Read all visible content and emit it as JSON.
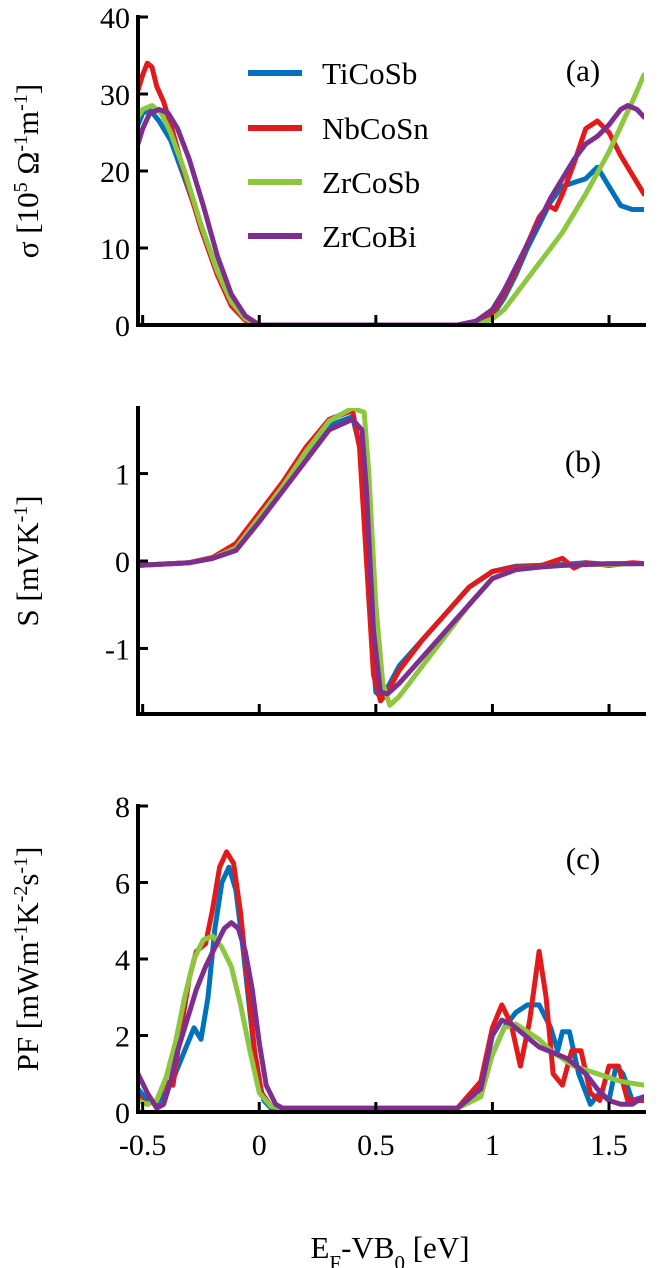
{
  "colors": {
    "TiCoSb": "#0072BD",
    "NbCoSn": "#E31A1C",
    "ZrCoSb": "#8DC63F",
    "ZrCoBi": "#7E2F8E"
  },
  "xlabel": {
    "main": "E",
    "sub1": "F",
    "mid": "-VB",
    "sub2": "0",
    "unit": " [eV]"
  },
  "chart_data": [
    {
      "type": "line",
      "panel": "(a)",
      "ylabel": {
        "base": "σ [10",
        "sup1": "5",
        "mid": " Ω",
        "sup2": "-1",
        "m": "m",
        "sup3": "-1",
        "end": "]"
      },
      "xlim": [
        -0.52,
        1.65
      ],
      "ylim": [
        0,
        40
      ],
      "xticks": [
        -0.5,
        0,
        0.5,
        1,
        1.5
      ],
      "yticks": [
        0,
        10,
        20,
        30,
        40
      ],
      "ytick_labels": [
        "0",
        "10",
        "20",
        "30",
        "40"
      ],
      "legend": {
        "placement": "top-center",
        "entries": [
          "TiCoSb",
          "NbCoSn",
          "ZrCoSb",
          "ZrCoBi"
        ]
      },
      "series": [
        {
          "name": "TiCoSb",
          "x": [
            -0.52,
            -0.5,
            -0.47,
            -0.43,
            -0.38,
            -0.32,
            -0.25,
            -0.18,
            -0.12,
            -0.06,
            0,
            0.1,
            0.3,
            0.5,
            0.7,
            0.85,
            0.95,
            1.0,
            1.05,
            1.1,
            1.15,
            1.2,
            1.25,
            1.3,
            1.35,
            1.4,
            1.45,
            1.5,
            1.55,
            1.6,
            1.65
          ],
          "y": [
            26,
            27.5,
            28,
            26.5,
            24,
            19,
            13,
            7,
            3,
            0.8,
            0,
            0,
            0,
            0,
            0,
            0,
            0.3,
            1.2,
            3.5,
            6.5,
            10,
            13,
            16,
            18,
            18.5,
            19,
            20.5,
            18,
            15.5,
            15,
            15
          ]
        },
        {
          "name": "NbCoSn",
          "x": [
            -0.52,
            -0.5,
            -0.48,
            -0.46,
            -0.44,
            -0.41,
            -0.37,
            -0.32,
            -0.25,
            -0.18,
            -0.12,
            -0.06,
            0,
            0.1,
            0.3,
            0.5,
            0.7,
            0.85,
            0.95,
            1.0,
            1.05,
            1.1,
            1.15,
            1.2,
            1.24,
            1.27,
            1.3,
            1.35,
            1.4,
            1.45,
            1.5,
            1.55,
            1.6,
            1.65
          ],
          "y": [
            30.5,
            32.5,
            34,
            33.5,
            31,
            29,
            25,
            19.5,
            12.5,
            6.5,
            2.5,
            0.6,
            0,
            0,
            0,
            0,
            0,
            0,
            0.4,
            1.5,
            4,
            7,
            10.5,
            14,
            15.5,
            15,
            17,
            21,
            25.5,
            26.5,
            25,
            22,
            19.5,
            17
          ]
        },
        {
          "name": "ZrCoSb",
          "x": [
            -0.52,
            -0.5,
            -0.46,
            -0.42,
            -0.38,
            -0.32,
            -0.25,
            -0.18,
            -0.12,
            -0.06,
            0,
            0.1,
            0.3,
            0.5,
            0.7,
            0.85,
            0.95,
            1.0,
            1.05,
            1.1,
            1.15,
            1.2,
            1.3,
            1.4,
            1.5,
            1.6,
            1.65
          ],
          "y": [
            27,
            28,
            28.5,
            27.5,
            25,
            20,
            13,
            7,
            3,
            0.8,
            0,
            0,
            0,
            0,
            0,
            0,
            0.2,
            0.8,
            2,
            4,
            6,
            8,
            12,
            17,
            22.5,
            29,
            32.5
          ]
        },
        {
          "name": "ZrCoBi",
          "x": [
            -0.52,
            -0.5,
            -0.47,
            -0.43,
            -0.39,
            -0.35,
            -0.3,
            -0.24,
            -0.18,
            -0.12,
            -0.06,
            0,
            0.1,
            0.3,
            0.5,
            0.7,
            0.85,
            0.93,
            1.0,
            1.05,
            1.1,
            1.15,
            1.2,
            1.25,
            1.3,
            1.35,
            1.4,
            1.45,
            1.5,
            1.55,
            1.58,
            1.62,
            1.65
          ],
          "y": [
            23.5,
            25.5,
            27.5,
            28,
            27.5,
            25.5,
            21.5,
            15.5,
            9,
            4,
            1.2,
            0,
            0,
            0,
            0,
            0,
            0,
            0.5,
            2,
            4.5,
            7.5,
            10.5,
            13.5,
            16.5,
            19,
            21.5,
            23.5,
            24.5,
            26,
            28,
            28.5,
            28,
            27
          ]
        }
      ]
    },
    {
      "type": "line",
      "panel": "(b)",
      "ylabel": {
        "base": "S [mVK",
        "sup1": "-1",
        "end": "]"
      },
      "xlim": [
        -0.52,
        1.65
      ],
      "ylim": [
        -1.75,
        1.75
      ],
      "xticks": [
        -0.5,
        0,
        0.5,
        1,
        1.5
      ],
      "yticks": [
        -1,
        0,
        1
      ],
      "ytick_labels": [
        "-1",
        "0",
        "1"
      ],
      "series": [
        {
          "name": "TiCoSb",
          "x": [
            -0.52,
            -0.3,
            -0.2,
            -0.1,
            0,
            0.1,
            0.2,
            0.3,
            0.4,
            0.44,
            0.46,
            0.48,
            0.5,
            0.52,
            0.55,
            0.6,
            0.7,
            0.8,
            0.9,
            1.0,
            1.1,
            1.2,
            1.3,
            1.4,
            1.5,
            1.6,
            1.65
          ],
          "y": [
            -0.05,
            -0.02,
            0.03,
            0.15,
            0.5,
            0.85,
            1.2,
            1.55,
            1.65,
            1.2,
            0.2,
            -0.8,
            -1.5,
            -1.55,
            -1.45,
            -1.2,
            -0.9,
            -0.6,
            -0.3,
            -0.12,
            -0.06,
            -0.05,
            -0.04,
            -0.02,
            -0.04,
            -0.03,
            -0.03
          ]
        },
        {
          "name": "NbCoSn",
          "x": [
            -0.52,
            -0.3,
            -0.2,
            -0.1,
            0,
            0.1,
            0.2,
            0.3,
            0.4,
            0.43,
            0.46,
            0.49,
            0.52,
            0.55,
            0.6,
            0.7,
            0.8,
            0.9,
            1.0,
            1.1,
            1.2,
            1.3,
            1.35,
            1.4,
            1.5,
            1.6,
            1.65
          ],
          "y": [
            -0.05,
            -0.02,
            0.04,
            0.2,
            0.55,
            0.9,
            1.3,
            1.62,
            1.72,
            1.3,
            0,
            -1.3,
            -1.6,
            -1.5,
            -1.25,
            -0.9,
            -0.6,
            -0.3,
            -0.12,
            -0.07,
            -0.06,
            0.03,
            -0.08,
            -0.02,
            -0.05,
            -0.02,
            -0.03
          ]
        },
        {
          "name": "ZrCoSb",
          "x": [
            -0.52,
            -0.3,
            -0.2,
            -0.1,
            0,
            0.1,
            0.2,
            0.3,
            0.4,
            0.45,
            0.47,
            0.5,
            0.53,
            0.56,
            0.6,
            0.7,
            0.8,
            0.9,
            1.0,
            1.1,
            1.2,
            1.3,
            1.4,
            1.5,
            1.6,
            1.65
          ],
          "y": [
            -0.05,
            -0.02,
            0.03,
            0.15,
            0.5,
            0.85,
            1.25,
            1.6,
            1.75,
            1.7,
            1.0,
            -0.5,
            -1.4,
            -1.65,
            -1.55,
            -1.2,
            -0.85,
            -0.5,
            -0.2,
            -0.1,
            -0.07,
            -0.05,
            -0.04,
            -0.04,
            -0.03,
            -0.03
          ]
        },
        {
          "name": "ZrCoBi",
          "x": [
            -0.52,
            -0.3,
            -0.2,
            -0.1,
            0,
            0.1,
            0.2,
            0.3,
            0.4,
            0.44,
            0.46,
            0.49,
            0.52,
            0.55,
            0.6,
            0.7,
            0.8,
            0.9,
            1.0,
            1.1,
            1.2,
            1.3,
            1.4,
            1.5,
            1.6,
            1.65
          ],
          "y": [
            -0.05,
            -0.02,
            0.03,
            0.12,
            0.45,
            0.8,
            1.15,
            1.5,
            1.62,
            1.5,
            0.8,
            -0.8,
            -1.5,
            -1.52,
            -1.4,
            -1.1,
            -0.8,
            -0.5,
            -0.2,
            -0.1,
            -0.07,
            -0.05,
            -0.04,
            -0.03,
            -0.03,
            -0.03
          ]
        }
      ]
    },
    {
      "type": "line",
      "panel": "(c)",
      "ylabel": {
        "base": "PF [mWm",
        "sup1": "-1",
        "mid": "K",
        "sup2": "-2",
        "s": "s",
        "sup3": "-1",
        "end": "]"
      },
      "xlim": [
        -0.52,
        1.65
      ],
      "ylim": [
        0,
        8
      ],
      "xticks": [
        -0.5,
        0,
        0.5,
        1,
        1.5
      ],
      "xtick_labels": [
        "-0.5",
        "0",
        "0.5",
        "1",
        "1.5"
      ],
      "yticks": [
        0,
        2,
        4,
        6,
        8
      ],
      "ytick_labels": [
        "0",
        "2",
        "4",
        "6",
        "8"
      ],
      "series": [
        {
          "name": "TiCoSb",
          "x": [
            -0.52,
            -0.48,
            -0.44,
            -0.4,
            -0.36,
            -0.32,
            -0.28,
            -0.25,
            -0.22,
            -0.19,
            -0.16,
            -0.13,
            -0.1,
            -0.07,
            -0.04,
            -0.01,
            0.02,
            0.05,
            0.1,
            0.3,
            0.5,
            0.7,
            0.85,
            0.95,
            1.0,
            1.05,
            1.1,
            1.15,
            1.2,
            1.25,
            1.28,
            1.3,
            1.33,
            1.37,
            1.42,
            1.46,
            1.5,
            1.53,
            1.56,
            1.6,
            1.65
          ],
          "y": [
            0.6,
            0.3,
            0.2,
            0.5,
            1.0,
            1.6,
            2.2,
            1.9,
            3.0,
            4.8,
            6.0,
            6.4,
            5.8,
            4.3,
            2.6,
            1.0,
            0.3,
            0.1,
            0.1,
            0.1,
            0.1,
            0.1,
            0.1,
            0.6,
            1.5,
            2.2,
            2.6,
            2.8,
            2.8,
            2.2,
            1.6,
            2.1,
            2.1,
            1.0,
            0.2,
            0.5,
            0.3,
            1.2,
            1.0,
            0.3,
            0.4
          ]
        },
        {
          "name": "NbCoSn",
          "x": [
            -0.52,
            -0.48,
            -0.44,
            -0.4,
            -0.37,
            -0.34,
            -0.3,
            -0.27,
            -0.23,
            -0.2,
            -0.17,
            -0.14,
            -0.11,
            -0.08,
            -0.05,
            -0.02,
            0.01,
            0.05,
            0.1,
            0.3,
            0.5,
            0.7,
            0.85,
            0.95,
            1.0,
            1.04,
            1.08,
            1.12,
            1.16,
            1.2,
            1.23,
            1.26,
            1.3,
            1.34,
            1.38,
            1.42,
            1.46,
            1.5,
            1.54,
            1.58,
            1.62,
            1.65
          ],
          "y": [
            0.4,
            0.2,
            0.3,
            0.8,
            0.7,
            2.0,
            3.5,
            4.2,
            4.4,
            5.3,
            6.4,
            6.8,
            6.5,
            5.2,
            3.4,
            1.6,
            0.5,
            0.15,
            0.1,
            0.1,
            0.1,
            0.1,
            0.1,
            0.8,
            2.2,
            2.8,
            2.3,
            1.2,
            2.4,
            4.2,
            3.0,
            1.0,
            0.7,
            1.6,
            1.6,
            0.5,
            0.3,
            1.2,
            1.2,
            0.3,
            0.3,
            0.3
          ]
        },
        {
          "name": "ZrCoSb",
          "x": [
            -0.52,
            -0.48,
            -0.44,
            -0.4,
            -0.36,
            -0.32,
            -0.28,
            -0.24,
            -0.2,
            -0.16,
            -0.12,
            -0.08,
            -0.04,
            0,
            0.05,
            0.1,
            0.3,
            0.5,
            0.7,
            0.85,
            0.95,
            1.0,
            1.05,
            1.1,
            1.15,
            1.2,
            1.25,
            1.3,
            1.35,
            1.4,
            1.45,
            1.5,
            1.55,
            1.6,
            1.65
          ],
          "y": [
            0.3,
            0.2,
            0.3,
            0.9,
            1.8,
            3.0,
            4.0,
            4.5,
            4.6,
            4.3,
            3.8,
            2.8,
            1.6,
            0.5,
            0.15,
            0.1,
            0.1,
            0.1,
            0.1,
            0.1,
            0.4,
            1.5,
            2.2,
            2.3,
            2.1,
            1.9,
            1.6,
            1.4,
            1.2,
            1.1,
            1.0,
            0.9,
            0.8,
            0.75,
            0.7
          ]
        },
        {
          "name": "ZrCoBi",
          "x": [
            -0.52,
            -0.48,
            -0.44,
            -0.41,
            -0.38,
            -0.35,
            -0.31,
            -0.27,
            -0.23,
            -0.19,
            -0.15,
            -0.12,
            -0.09,
            -0.06,
            -0.03,
            0,
            0.03,
            0.07,
            0.1,
            0.3,
            0.5,
            0.7,
            0.85,
            0.95,
            1.0,
            1.04,
            1.08,
            1.12,
            1.16,
            1.2,
            1.24,
            1.28,
            1.32,
            1.36,
            1.4,
            1.45,
            1.5,
            1.55,
            1.6,
            1.65
          ],
          "y": [
            1.0,
            0.5,
            0.1,
            0.2,
            0.8,
            1.6,
            2.4,
            3.2,
            3.8,
            4.3,
            4.8,
            4.95,
            4.8,
            4.2,
            3.2,
            1.8,
            0.7,
            0.2,
            0.1,
            0.1,
            0.1,
            0.1,
            0.1,
            0.6,
            2.0,
            2.4,
            2.3,
            2.1,
            1.9,
            1.7,
            1.6,
            1.5,
            1.4,
            1.2,
            1.0,
            0.6,
            0.3,
            0.2,
            0.2,
            0.4
          ]
        }
      ]
    }
  ]
}
